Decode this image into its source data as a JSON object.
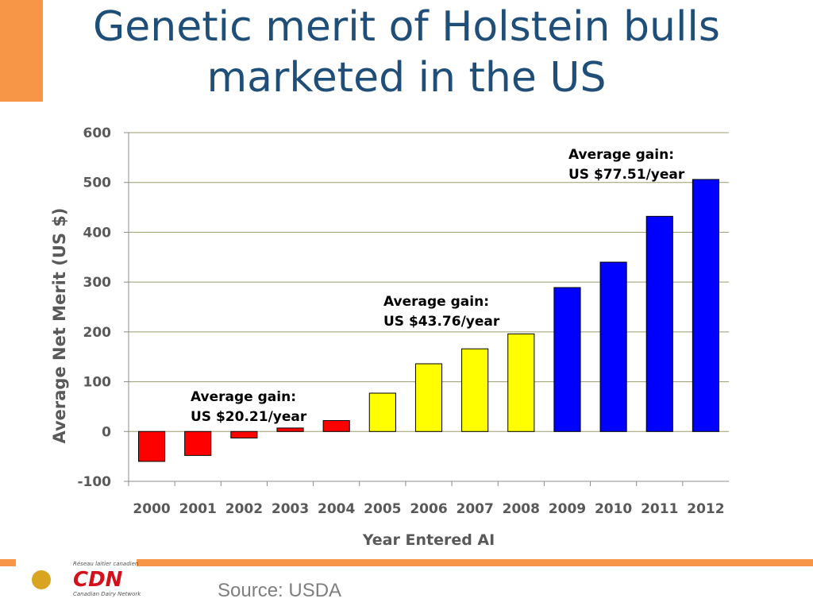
{
  "chart_data": {
    "type": "bar",
    "title": "Genetic merit of Holstein bulls marketed in the US",
    "y_label": "Average Net Merit (US $)",
    "x_label": "Year Entered AI",
    "categories": [
      "2000",
      "2001",
      "2002",
      "2003",
      "2004",
      "2005",
      "2006",
      "2007",
      "2008",
      "2009",
      "2010",
      "2011",
      "2012"
    ],
    "values": [
      -60,
      -48,
      -13,
      7,
      22,
      77,
      136,
      166,
      196,
      289,
      340,
      432,
      506
    ],
    "colors": [
      "#ff0000",
      "#ff0000",
      "#ff0000",
      "#ff0000",
      "#ff0000",
      "#ffff00",
      "#ffff00",
      "#ffff00",
      "#ffff00",
      "#0000ff",
      "#0000ff",
      "#0000ff",
      "#0000ff"
    ],
    "ylim": [
      -100,
      600
    ],
    "yticks": [
      -100,
      0,
      100,
      200,
      300,
      400,
      500,
      600
    ],
    "grid": true,
    "annotations": [
      {
        "lines": [
          "Average gain:",
          "US $20.21/year"
        ]
      },
      {
        "lines": [
          "Average gain:",
          "US $43.76/year"
        ]
      },
      {
        "lines": [
          "Average gain:",
          "US $77.51/year"
        ]
      }
    ]
  },
  "slide": {
    "source": "Source: USDA",
    "logo": {
      "mark": "CDN",
      "top_text": "Réseau laitier canadien",
      "bottom_text": "Canadian Dairy Network"
    }
  }
}
